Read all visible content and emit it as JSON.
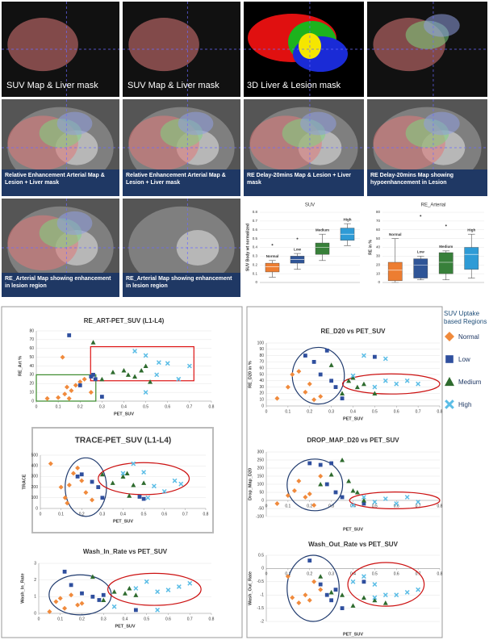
{
  "image_panels": [
    {
      "caption": "SUV Map & Liver mask"
    },
    {
      "caption": "SUV Map & Liver mask"
    },
    {
      "caption": "3D Liver & Lesion mask"
    },
    {
      "caption": "Relative Enhancement Arterial Map & Lesion + Liver mask"
    },
    {
      "caption": "Relative Enhancement Arterial Map & Lesion + Liver mask"
    },
    {
      "caption": "RE Delay-20mins Map & Lesion + Liver mask"
    },
    {
      "caption": "RE Delay-20mins Map showing hypoenhancement in Lesion"
    },
    {
      "caption": "RE_Arterial Map showing enhancement in lesion region"
    },
    {
      "caption": "RE_Arterial Map showing enhancement in lesion region"
    }
  ],
  "legend": {
    "title": "SUV Uptake based Regions",
    "series": [
      {
        "name": "Normal",
        "color": "#f08a3c",
        "marker": "diamond"
      },
      {
        "name": "Low",
        "color": "#2f4f9e",
        "marker": "square"
      },
      {
        "name": "Medium",
        "color": "#2e6b2e",
        "marker": "triangle"
      },
      {
        "name": "High",
        "color": "#5bbde6",
        "marker": "x"
      }
    ]
  },
  "chart_data": [
    {
      "type": "box",
      "title": "SUV",
      "ylabel": "SUV Body wt normalized",
      "categories": [
        "Normal",
        "Low",
        "Medium",
        "High"
      ],
      "colors": [
        "#ed7d31",
        "#2f5597",
        "#38803a",
        "#2e9bd6"
      ],
      "ylim": [
        0,
        0.8
      ],
      "yticks": [
        0,
        0.1,
        0.2,
        0.3,
        0.4,
        0.5,
        0.6,
        0.7,
        0.8
      ],
      "boxes": [
        {
          "min": 0.06,
          "q1": 0.12,
          "median": 0.18,
          "q3": 0.22,
          "max": 0.25,
          "outliers": [
            0.43
          ]
        },
        {
          "min": 0.15,
          "q1": 0.22,
          "median": 0.26,
          "q3": 0.3,
          "max": 0.33,
          "outliers": [
            0.5
          ]
        },
        {
          "min": 0.25,
          "q1": 0.32,
          "median": 0.4,
          "q3": 0.45,
          "max": 0.55,
          "outliers": []
        },
        {
          "min": 0.42,
          "q1": 0.48,
          "median": 0.55,
          "q3": 0.62,
          "max": 0.67,
          "outliers": []
        }
      ]
    },
    {
      "type": "box",
      "title": "RE_Arterial",
      "ylabel": "RE in %",
      "categories": [
        "Normal",
        "Low",
        "Medium",
        "High"
      ],
      "colors": [
        "#ed7d31",
        "#2f5597",
        "#38803a",
        "#2e9bd6"
      ],
      "ylim": [
        0,
        80
      ],
      "yticks": [
        0,
        10,
        20,
        30,
        40,
        50,
        60,
        70,
        80
      ],
      "boxes": [
        {
          "min": 0,
          "q1": 2,
          "median": 14,
          "q3": 23,
          "max": 50,
          "outliers": []
        },
        {
          "min": 3,
          "q1": 5,
          "median": 20,
          "q3": 27,
          "max": 30,
          "outliers": [
            76
          ]
        },
        {
          "min": 3,
          "q1": 10,
          "median": 23,
          "q3": 34,
          "max": 36,
          "outliers": [
            65
          ]
        },
        {
          "min": 5,
          "q1": 15,
          "median": 32,
          "q3": 40,
          "max": 55,
          "outliers": []
        }
      ]
    },
    {
      "type": "scatter",
      "title": "RE_ART-PET_SUV (L1-L4)",
      "xlabel": "PET_SUV",
      "ylabel": "RE_Art %",
      "xlim": [
        0,
        0.8
      ],
      "xticks": [
        0,
        0.1,
        0.2,
        0.3,
        0.4,
        0.5,
        0.6,
        0.7,
        0.8
      ],
      "ylim": [
        0,
        80
      ],
      "yticks": [
        0,
        10,
        20,
        30,
        40,
        50,
        60,
        70,
        80
      ],
      "grid": true,
      "series": [
        {
          "x": [
            0.05,
            0.1,
            0.12,
            0.13,
            0.15,
            0.16,
            0.18,
            0.2,
            0.22,
            0.25,
            0.14
          ],
          "y": [
            3,
            4,
            50,
            8,
            3,
            12,
            18,
            22,
            25,
            10,
            16
          ]
        },
        {
          "x": [
            0.15,
            0.2,
            0.25,
            0.27,
            0.3,
            0.26
          ],
          "y": [
            75,
            18,
            28,
            25,
            5,
            30
          ]
        },
        {
          "x": [
            0.26,
            0.3,
            0.35,
            0.4,
            0.42,
            0.45,
            0.5,
            0.48,
            0.52
          ],
          "y": [
            67,
            25,
            33,
            35,
            30,
            28,
            40,
            35,
            22
          ]
        },
        {
          "x": [
            0.45,
            0.5,
            0.55,
            0.6,
            0.65,
            0.7,
            0.56,
            0.5
          ],
          "y": [
            57,
            52,
            30,
            43,
            25,
            40,
            44,
            10
          ]
        }
      ]
    },
    {
      "type": "scatter",
      "title": "TRACE-PET_SUV (L1-L4)",
      "xlabel": "PET_SUV",
      "ylabel": "TRACE",
      "xlim": [
        0,
        0.8
      ],
      "xticks": [
        0,
        0.1,
        0.2,
        0.3,
        0.4,
        0.5,
        0.6,
        0.7,
        0.8
      ],
      "ylim": [
        0,
        500
      ],
      "yticks": [
        0,
        100,
        200,
        300,
        400,
        500
      ],
      "grid": true,
      "series": [
        {
          "x": [
            0.05,
            0.1,
            0.12,
            0.14,
            0.16,
            0.18,
            0.2,
            0.22,
            0.25,
            0.13
          ],
          "y": [
            420,
            200,
            100,
            220,
            330,
            380,
            260,
            150,
            80,
            50
          ]
        },
        {
          "x": [
            0.18,
            0.2,
            0.25,
            0.28,
            0.3,
            0.48,
            0.5
          ],
          "y": [
            300,
            320,
            250,
            200,
            100,
            110,
            90
          ]
        },
        {
          "x": [
            0.3,
            0.35,
            0.4,
            0.42,
            0.45,
            0.5,
            0.43
          ],
          "y": [
            320,
            240,
            300,
            330,
            220,
            240,
            120
          ]
        },
        {
          "x": [
            0.4,
            0.45,
            0.5,
            0.55,
            0.6,
            0.65,
            0.68,
            0.52
          ],
          "y": [
            330,
            420,
            340,
            210,
            160,
            260,
            230,
            100
          ]
        }
      ]
    },
    {
      "type": "scatter",
      "title": "Wash_In_Rate vs PET_SUV",
      "xlabel": "PET_SUV",
      "ylabel": "Wash_In_Rate",
      "xlim": [
        0,
        0.8
      ],
      "xticks": [
        0,
        0.1,
        0.2,
        0.3,
        0.4,
        0.5,
        0.6,
        0.7,
        0.8
      ],
      "ylim": [
        0,
        3
      ],
      "yticks": [
        0,
        1,
        2,
        3
      ],
      "grid": true,
      "series": [
        {
          "x": [
            0.05,
            0.08,
            0.1,
            0.12,
            0.15,
            0.18,
            0.2
          ],
          "y": [
            0.1,
            0.7,
            0.9,
            0.3,
            1.1,
            0.5,
            0.6
          ]
        },
        {
          "x": [
            0.12,
            0.15,
            0.2,
            0.25,
            0.28,
            0.3,
            0.45
          ],
          "y": [
            2.5,
            1.7,
            1.2,
            1,
            0.8,
            1.1,
            0.2
          ]
        },
        {
          "x": [
            0.25,
            0.3,
            0.35,
            0.4,
            0.42,
            0.45
          ],
          "y": [
            2.2,
            0.8,
            1.3,
            1.2,
            1.5,
            1.1
          ]
        },
        {
          "x": [
            0.35,
            0.45,
            0.5,
            0.55,
            0.6,
            0.65,
            0.7,
            0.55
          ],
          "y": [
            0.4,
            1.5,
            1.9,
            1.3,
            1.4,
            1.6,
            1.8,
            0.2
          ]
        }
      ]
    },
    {
      "type": "scatter",
      "title": "RE_D20 vs PET_SUV",
      "xlabel": "PET_SUV",
      "ylabel": "RE_D20 in %",
      "xlim": [
        0,
        0.8
      ],
      "xticks": [
        0,
        0.1,
        0.2,
        0.3,
        0.4,
        0.5,
        0.6,
        0.7,
        0.8
      ],
      "ylim": [
        0,
        100
      ],
      "yticks": [
        0,
        10,
        20,
        30,
        40,
        50,
        60,
        70,
        80,
        90,
        100
      ],
      "grid": true,
      "series": [
        {
          "x": [
            0.05,
            0.1,
            0.12,
            0.15,
            0.18,
            0.2,
            0.22,
            0.25
          ],
          "y": [
            12,
            30,
            50,
            55,
            22,
            35,
            10,
            15
          ]
        },
        {
          "x": [
            0.18,
            0.22,
            0.25,
            0.28,
            0.3,
            0.32,
            0.35,
            0.5
          ],
          "y": [
            80,
            70,
            50,
            88,
            40,
            30,
            12,
            78
          ]
        },
        {
          "x": [
            0.3,
            0.35,
            0.38,
            0.4,
            0.42,
            0.45,
            0.5
          ],
          "y": [
            65,
            20,
            40,
            45,
            30,
            35,
            20
          ]
        },
        {
          "x": [
            0.4,
            0.45,
            0.5,
            0.55,
            0.6,
            0.65,
            0.7,
            0.55
          ],
          "y": [
            48,
            80,
            30,
            40,
            35,
            40,
            35,
            75
          ]
        }
      ]
    },
    {
      "type": "scatter",
      "title": "DROP_MAP_D20 vs PET_SUV",
      "xlabel": "PET_SUV",
      "ylabel": "Drop_Map_D20",
      "xlim": [
        0,
        0.8
      ],
      "xticks": [
        0,
        0.1,
        0.2,
        0.3,
        0.4,
        0.5,
        0.6,
        0.7,
        0.8
      ],
      "ylim": [
        -100,
        300
      ],
      "yticks": [
        -100,
        -50,
        0,
        50,
        100,
        150,
        200,
        250,
        300
      ],
      "grid": true,
      "series": [
        {
          "x": [
            0.05,
            0.1,
            0.13,
            0.15,
            0.18,
            0.2,
            0.22,
            0.25
          ],
          "y": [
            -20,
            30,
            60,
            120,
            20,
            40,
            -30,
            150
          ]
        },
        {
          "x": [
            0.2,
            0.25,
            0.28,
            0.3,
            0.32,
            0.35,
            0.45
          ],
          "y": [
            230,
            220,
            100,
            230,
            50,
            20,
            -20
          ]
        },
        {
          "x": [
            0.25,
            0.3,
            0.35,
            0.38,
            0.4,
            0.42,
            0.45
          ],
          "y": [
            100,
            160,
            250,
            120,
            60,
            50,
            0
          ]
        },
        {
          "x": [
            0.45,
            0.5,
            0.55,
            0.6,
            0.65,
            0.7,
            0.4
          ],
          "y": [
            20,
            -10,
            10,
            -20,
            20,
            -10,
            -30
          ]
        }
      ]
    },
    {
      "type": "scatter",
      "title": "Wash_Out_Rate vs PET_SUV",
      "xlabel": "PET_SUV",
      "ylabel": "Wash_Out_Rate",
      "xlim": [
        0,
        0.8
      ],
      "xticks": [
        0,
        0.1,
        0.2,
        0.3,
        0.4,
        0.5,
        0.6,
        0.7,
        0.8
      ],
      "ylim": [
        -2,
        0.5
      ],
      "yticks": [
        -2,
        -1.5,
        -1,
        -0.5,
        0,
        0.5
      ],
      "grid": true,
      "series": [
        {
          "x": [
            0.1,
            0.12,
            0.15,
            0.18,
            0.2,
            0.22,
            0.25
          ],
          "y": [
            -0.3,
            -1.1,
            -1.3,
            -1,
            -1.2,
            -0.5,
            -0.8
          ]
        },
        {
          "x": [
            0.2,
            0.25,
            0.28,
            0.3,
            0.32,
            0.35,
            0.45
          ],
          "y": [
            0.3,
            -0.6,
            -1,
            -1.2,
            -0.8,
            -1.5,
            -0.5
          ]
        },
        {
          "x": [
            0.25,
            0.3,
            0.35,
            0.4,
            0.45,
            0.5,
            0.55
          ],
          "y": [
            -0.3,
            -0.9,
            -1,
            -1.4,
            -1.1,
            -1.2,
            -1.3
          ]
        },
        {
          "x": [
            0.4,
            0.45,
            0.5,
            0.55,
            0.6,
            0.65,
            0.7,
            0.5
          ],
          "y": [
            -0.5,
            -0.3,
            -0.6,
            -1,
            -1,
            -0.9,
            -0.8,
            -1.1
          ]
        }
      ]
    }
  ]
}
